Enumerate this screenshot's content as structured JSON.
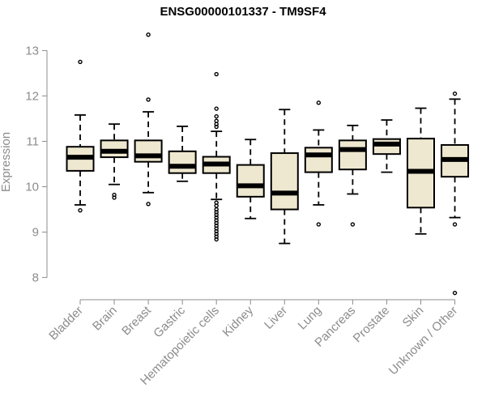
{
  "chart_data": {
    "type": "box",
    "title": "ENSG00000101337 - TM9SF4",
    "xlabel": "",
    "ylabel": "Expression",
    "ylim": [
      7.6,
      13.4
    ],
    "yticks": [
      8,
      9,
      10,
      11,
      12,
      13
    ],
    "box_fill": "#efe8d0",
    "categories": [
      "Bladder",
      "Brain",
      "Breast",
      "Gastric",
      "Hematopoietic cells",
      "Kidney",
      "Liver",
      "Lung",
      "Pancreas",
      "Prostate",
      "Skin",
      "Unknown / Other"
    ],
    "boxes": [
      {
        "min": 9.6,
        "q1": 10.35,
        "median": 10.65,
        "q3": 10.88,
        "max": 11.58,
        "outliers": [
          9.48,
          12.75
        ]
      },
      {
        "min": 10.05,
        "q1": 10.65,
        "median": 10.78,
        "q3": 11.02,
        "max": 11.38,
        "outliers": [
          9.82,
          9.76
        ]
      },
      {
        "min": 9.87,
        "q1": 10.55,
        "median": 10.68,
        "q3": 11.02,
        "max": 11.65,
        "outliers": [
          13.35,
          11.92,
          9.62
        ]
      },
      {
        "min": 10.12,
        "q1": 10.3,
        "median": 10.45,
        "q3": 10.78,
        "max": 11.33,
        "outliers": []
      },
      {
        "min": 9.72,
        "q1": 10.3,
        "median": 10.5,
        "q3": 10.66,
        "max": 11.22,
        "outliers": [
          12.48,
          11.72,
          11.55,
          11.45,
          11.38,
          11.32,
          9.65,
          9.58,
          9.5,
          9.44,
          9.38,
          9.32,
          9.26,
          9.2,
          9.14,
          9.08,
          9.02,
          8.96,
          8.9,
          8.84
        ]
      },
      {
        "min": 9.3,
        "q1": 9.78,
        "median": 10.02,
        "q3": 10.48,
        "max": 11.04,
        "outliers": []
      },
      {
        "min": 8.75,
        "q1": 9.5,
        "median": 9.86,
        "q3": 10.74,
        "max": 11.7,
        "outliers": []
      },
      {
        "min": 9.6,
        "q1": 10.32,
        "median": 10.7,
        "q3": 10.86,
        "max": 11.25,
        "outliers": [
          11.85,
          9.17
        ]
      },
      {
        "min": 9.84,
        "q1": 10.38,
        "median": 10.82,
        "q3": 11.02,
        "max": 11.35,
        "outliers": [
          9.17
        ]
      },
      {
        "min": 10.32,
        "q1": 10.72,
        "median": 10.94,
        "q3": 11.05,
        "max": 11.47,
        "outliers": []
      },
      {
        "min": 8.96,
        "q1": 9.54,
        "median": 10.34,
        "q3": 11.06,
        "max": 11.73,
        "outliers": []
      },
      {
        "min": 9.32,
        "q1": 10.22,
        "median": 10.6,
        "q3": 10.92,
        "max": 11.93,
        "outliers": [
          12.05,
          9.17,
          7.66
        ]
      }
    ]
  }
}
